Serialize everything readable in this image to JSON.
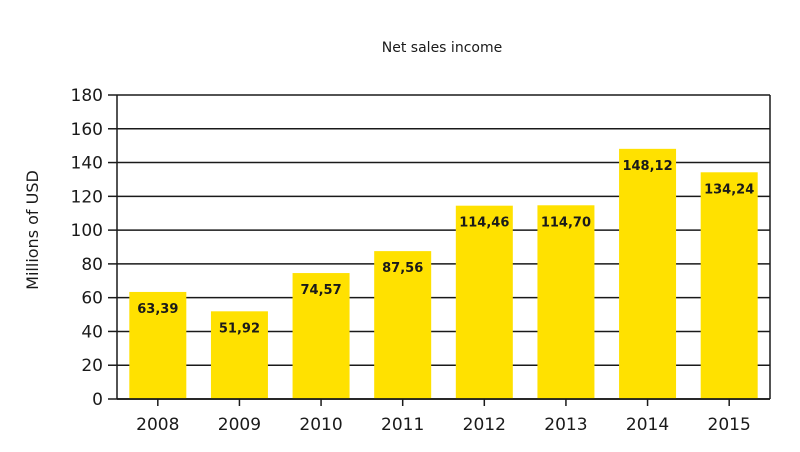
{
  "chart_data": {
    "type": "bar",
    "title": "Net sales income",
    "xlabel": "",
    "ylabel": "Millions of USD",
    "categories": [
      "2008",
      "2009",
      "2010",
      "2011",
      "2012",
      "2013",
      "2014",
      "2015"
    ],
    "values": [
      63.39,
      51.92,
      74.57,
      87.56,
      114.46,
      114.7,
      148.12,
      134.24
    ],
    "data_labels": [
      "63,39",
      "51,92",
      "74,57",
      "87,56",
      "114,46",
      "114,70",
      "148,12",
      "134,24"
    ],
    "ylim": [
      0,
      180
    ],
    "yticks": [
      "0",
      "20",
      "40",
      "60",
      "80",
      "100",
      "120",
      "140",
      "160",
      "180"
    ],
    "grid": true,
    "legend": "none",
    "colors": {
      "bar": "#FFE100",
      "grid": "#1a1a1a",
      "text": "#1a1a1a"
    }
  }
}
